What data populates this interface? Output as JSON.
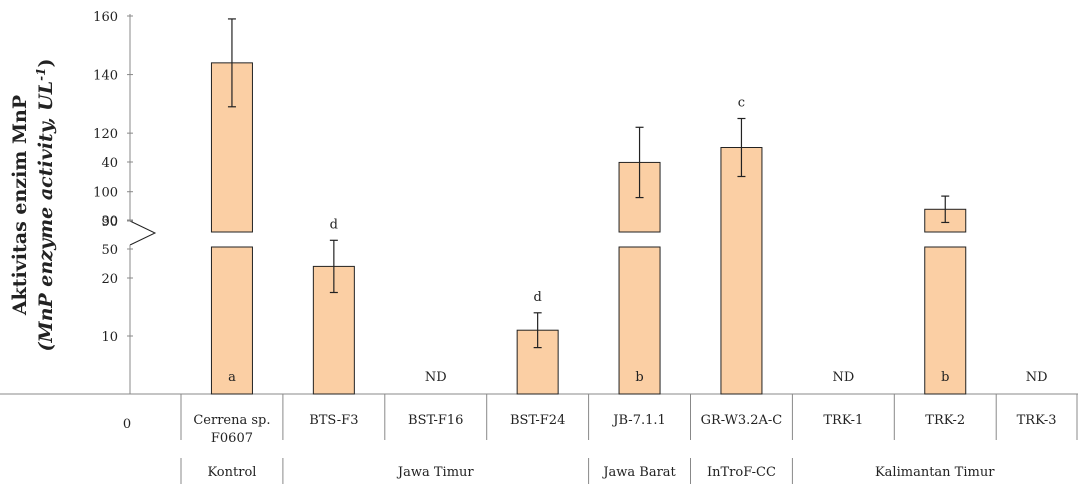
{
  "chart_data": {
    "type": "bar",
    "title": "",
    "ylabel_line1": "Aktivitas enzim MnP",
    "ylabel_line2_main": "(MnP enzyme activity, UL",
    "ylabel_line2_sup": "-1",
    "ylabel_line2_end": ")",
    "xlabel": "",
    "axis_break": {
      "from": 50,
      "to": 90
    },
    "lower_ticks": [
      "10",
      "20",
      "30",
      "40",
      "50"
    ],
    "upper_ticks": [
      "90",
      "100",
      "120",
      "140",
      "160"
    ],
    "origin_label": "0",
    "categories": [
      {
        "label_lines": [
          "Cerrena sp.",
          "F0607"
        ],
        "value": 144,
        "error": 15,
        "letter": "a"
      },
      {
        "label_lines": [
          "BTS-F3"
        ],
        "value": 22,
        "error": 4.5,
        "letter": "d"
      },
      {
        "label_lines": [
          "BST-F16"
        ],
        "value": null,
        "error": null,
        "letter": "ND"
      },
      {
        "label_lines": [
          "BST-F24"
        ],
        "value": 11,
        "error": 3,
        "letter": "d"
      },
      {
        "label_lines": [
          "JB-7.1.1"
        ],
        "value": 110,
        "error": 12,
        "letter": "b"
      },
      {
        "label_lines": [
          "GR-W3.2A-C"
        ],
        "value": 42.5,
        "error": 5,
        "letter": "c"
      },
      {
        "label_lines": [
          "TRK-1"
        ],
        "value": null,
        "error": null,
        "letter": "ND"
      },
      {
        "label_lines": [
          "TRK-2"
        ],
        "value": 94,
        "error": 4.5,
        "letter": "b"
      },
      {
        "label_lines": [
          "TRK-3"
        ],
        "value": null,
        "error": null,
        "letter": "ND"
      }
    ],
    "groups": [
      {
        "label": "Kontrol",
        "span": 1
      },
      {
        "label": "Jawa Timur",
        "span": 3
      },
      {
        "label": "Jawa Barat",
        "span": 1
      },
      {
        "label": "InTroF-CC",
        "span": 1
      },
      {
        "label": "Kalimantan Timur",
        "span": 3
      }
    ],
    "grid": false,
    "colors": {
      "bar_fill": "#fbcfa4",
      "bar_stroke": "#222222",
      "axis": "#888888"
    }
  }
}
